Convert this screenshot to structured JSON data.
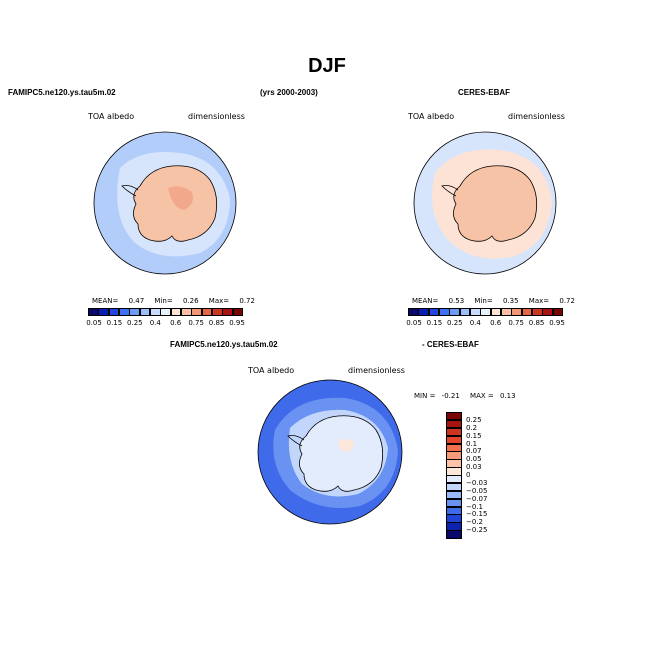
{
  "title": "DJF",
  "headers": {
    "left_model": "FAMIPC5.ne120.ys.tau5m.02",
    "years": "(yrs 2000-2003)",
    "right_obs": "CERES-EBAF",
    "bottom_model": "FAMIPC5.ne120.ys.tau5m.02",
    "bottom_diff": "- CERES-EBAF"
  },
  "panels": [
    {
      "id": "model",
      "variable": "TOA albedo",
      "units": "dimensionless",
      "stats": {
        "mean_label": "MEAN=",
        "mean": "0.47",
        "min_label": "Min=",
        "min": "0.26",
        "max_label": "Max=",
        "max": "0.72"
      }
    },
    {
      "id": "obs",
      "variable": "TOA albedo",
      "units": "dimensionless",
      "stats": {
        "mean_label": "MEAN=",
        "mean": "0.53",
        "min_label": "Min=",
        "min": "0.35",
        "max_label": "Max=",
        "max": "0.72"
      }
    },
    {
      "id": "diff",
      "variable": "TOA albedo",
      "units": "dimensionless",
      "stats": {
        "min_label": "MIN =",
        "min": "-0.21",
        "max_label": "MAX =",
        "max": "0.13"
      }
    }
  ],
  "albedo_colorbar": {
    "labels": [
      "0.05",
      "0.15",
      "0.25",
      "0.4",
      "0.6",
      "0.75",
      "0.85",
      "0.95"
    ],
    "colors": [
      "#08086b",
      "#0a1fb0",
      "#1e46d8",
      "#3c73ee",
      "#6b9cf6",
      "#9cbff9",
      "#c7dbfc",
      "#eaf1fd",
      "#fde3d6",
      "#f9c0a3",
      "#f29676",
      "#e5664a",
      "#cc3524",
      "#a71410",
      "#7a0505"
    ]
  },
  "diff_colorbar": {
    "labels": [
      "0.25",
      "0.2",
      "0.15",
      "0.1",
      "0.07",
      "0.05",
      "0.03",
      "0",
      "-0.03",
      "-0.05",
      "-0.07",
      "-0.1",
      "-0.15",
      "-0.2",
      "-0.25"
    ],
    "colors": [
      "#7a0505",
      "#a71410",
      "#cc3524",
      "#e5452c",
      "#f2704e",
      "#f79b7b",
      "#fbc4aa",
      "#fde6da",
      "#e2ecfd",
      "#c2d6fb",
      "#98b8f7",
      "#6a92f2",
      "#3f6aea",
      "#1f44d6",
      "#0c23b0",
      "#08086b"
    ]
  },
  "map_colors": {
    "model_ocean": "#b3cdfa",
    "model_ice": "#d6e4fc",
    "model_land": "#f7c3a7",
    "model_land_dark": "#f2a88a",
    "obs_ocean": "#d6e4fc",
    "obs_ice": "#fde3d6",
    "obs_land": "#f7c3a7",
    "diff_ocean": "#3f6aea",
    "diff_mid": "#6a92f2",
    "diff_near": "#c2d6fb",
    "diff_land": "#e2ecfd"
  }
}
